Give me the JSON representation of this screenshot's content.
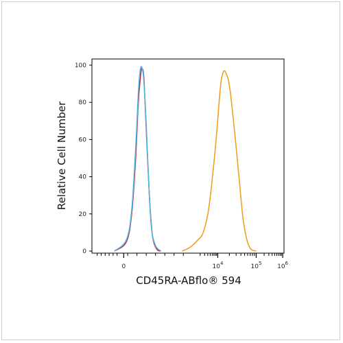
{
  "chart_data": {
    "type": "line",
    "title": "",
    "xlabel": "CD45RA-ABflo® 594",
    "ylabel": "Relative Cell Number",
    "xscale": "biexponential",
    "ylim": [
      0,
      100
    ],
    "ytick_labels": [
      "0",
      "20",
      "40",
      "60",
      "80",
      "100"
    ],
    "xtick_labels": [
      {
        "base": "0",
        "exp": ""
      },
      {
        "base": "10",
        "exp": "4"
      },
      {
        "base": "10",
        "exp": "5"
      },
      {
        "base": "10",
        "exp": "6"
      }
    ],
    "grid": false,
    "legend": "none",
    "series": [
      {
        "color": "#c0283c",
        "x": [
          -0.35,
          0.1,
          0.3,
          0.45,
          0.55,
          0.65,
          0.7,
          0.75,
          0.8,
          0.9,
          1.0,
          1.1,
          1.25,
          1.4
        ],
        "y": [
          0,
          5,
          20,
          50,
          80,
          96,
          98,
          95,
          82,
          50,
          22,
          7,
          1,
          0
        ]
      },
      {
        "color": "#4fb6e3",
        "x": [
          -0.35,
          0.1,
          0.3,
          0.45,
          0.55,
          0.62,
          0.68,
          0.75,
          0.85,
          0.95,
          1.05,
          1.2,
          1.4
        ],
        "y": [
          0,
          6,
          22,
          55,
          85,
          97,
          99,
          93,
          68,
          35,
          12,
          3,
          0
        ]
      },
      {
        "color": "#f0a020",
        "x": [
          2.2,
          2.5,
          2.8,
          3.0,
          3.2,
          3.35,
          3.5,
          3.65,
          3.75,
          3.85,
          4.0,
          4.2,
          4.35,
          4.5,
          4.65,
          4.8,
          5.0
        ],
        "y": [
          0,
          2,
          6,
          10,
          22,
          40,
          62,
          88,
          96,
          96,
          88,
          62,
          40,
          18,
          6,
          1,
          0
        ]
      }
    ]
  }
}
